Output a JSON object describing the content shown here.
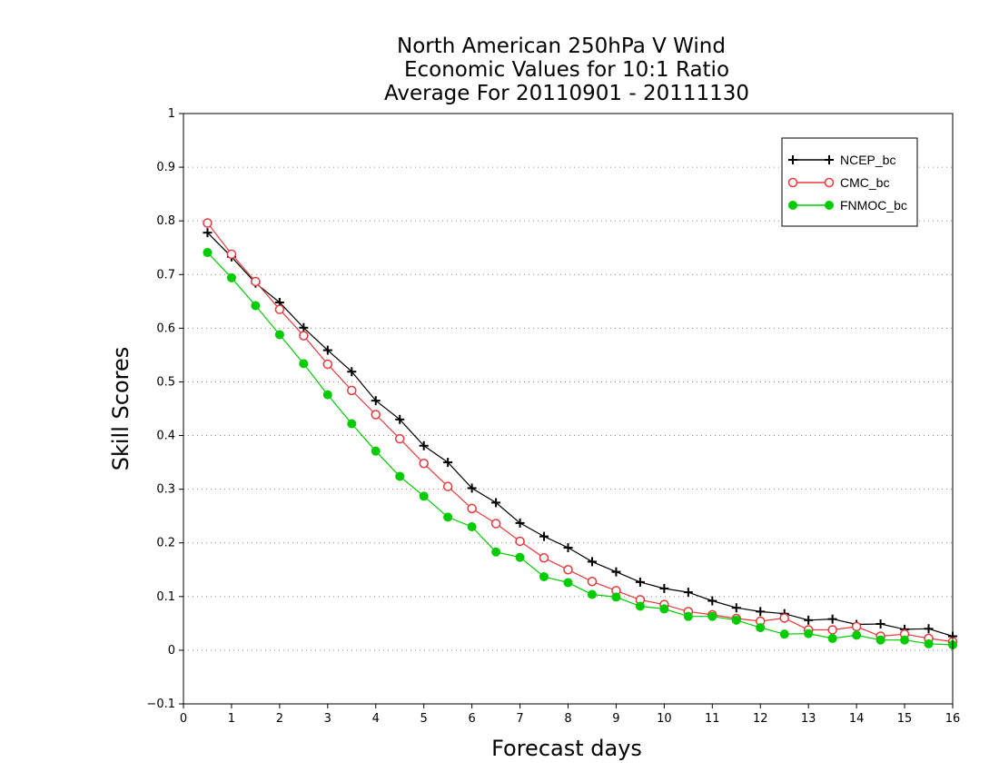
{
  "chart_data": {
    "type": "line",
    "title": [
      "North American 250hPa V Wind",
      "Economic Values for 10:1 Ratio",
      "Average For 20110901 - 20111130"
    ],
    "xlabel": "Forecast days",
    "ylabel": "Skill Scores",
    "xlim": [
      0,
      16
    ],
    "ylim": [
      -0.1,
      1
    ],
    "xticks": [
      "0",
      "1",
      "2",
      "3",
      "4",
      "5",
      "6",
      "7",
      "8",
      "9",
      "10",
      "11",
      "12",
      "13",
      "14",
      "15",
      "16"
    ],
    "yticks": [
      "−0.1",
      "0",
      "0.1",
      "0.2",
      "0.3",
      "0.4",
      "0.5",
      "0.6",
      "0.7",
      "0.8",
      "0.9",
      "1"
    ],
    "grid": "horizontal dotted",
    "legend_position": "top-right",
    "x": [
      0.5,
      1,
      1.5,
      2,
      2.5,
      3,
      3.5,
      4,
      4.5,
      5,
      5.5,
      6,
      6.5,
      7,
      7.5,
      8,
      8.5,
      9,
      9.5,
      10,
      10.5,
      11,
      11.5,
      12,
      12.5,
      13,
      13.5,
      14,
      14.5,
      15,
      15.5,
      16
    ],
    "series": [
      {
        "name": "NCEP_bc",
        "color": "#000000",
        "marker": "plus",
        "values": [
          0.778,
          0.733,
          0.684,
          0.648,
          0.601,
          0.559,
          0.519,
          0.465,
          0.43,
          0.381,
          0.35,
          0.302,
          0.275,
          0.237,
          0.212,
          0.191,
          0.165,
          0.146,
          0.127,
          0.115,
          0.108,
          0.092,
          0.079,
          0.072,
          0.068,
          0.056,
          0.058,
          0.048,
          0.049,
          0.039,
          0.04,
          0.026
        ]
      },
      {
        "name": "CMC_bc",
        "color": "#e8383b",
        "marker": "open-circle",
        "values": [
          0.796,
          0.738,
          0.687,
          0.635,
          0.586,
          0.533,
          0.484,
          0.439,
          0.394,
          0.348,
          0.305,
          0.264,
          0.236,
          0.203,
          0.172,
          0.15,
          0.128,
          0.111,
          0.094,
          0.085,
          0.072,
          0.066,
          0.059,
          0.054,
          0.06,
          0.038,
          0.038,
          0.044,
          0.026,
          0.03,
          0.022,
          0.016
        ]
      },
      {
        "name": "FNMOC_bc",
        "color": "#00cc00",
        "marker": "filled-circle",
        "values": [
          0.741,
          0.694,
          0.642,
          0.588,
          0.534,
          0.476,
          0.422,
          0.371,
          0.324,
          0.287,
          0.248,
          0.23,
          0.183,
          0.173,
          0.137,
          0.126,
          0.104,
          0.099,
          0.082,
          0.077,
          0.063,
          0.063,
          0.056,
          0.042,
          0.03,
          0.031,
          0.022,
          0.028,
          0.019,
          0.019,
          0.012,
          0.01
        ]
      }
    ]
  }
}
